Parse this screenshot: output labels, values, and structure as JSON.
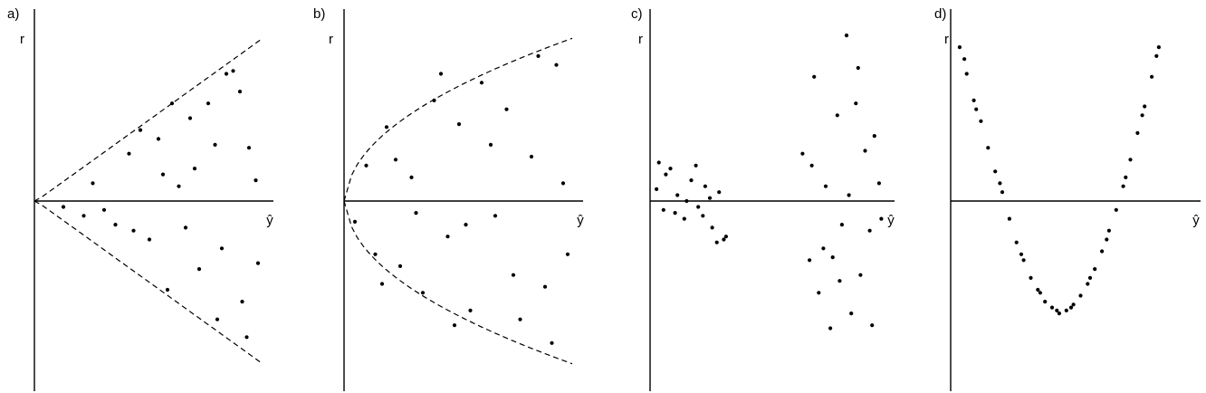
{
  "chart_data": [
    {
      "panel_label": "a)",
      "type": "scatter",
      "xlabel": "ŷ",
      "ylabel": "r",
      "xlim": [
        0,
        10
      ],
      "ylim": [
        -6,
        6
      ],
      "envelope": {
        "shape": "linear-fan",
        "upper": [
          [
            0,
            0
          ],
          [
            10,
            5.5
          ]
        ],
        "lower": [
          [
            0,
            0
          ],
          [
            10,
            -5.5
          ]
        ]
      },
      "points": [
        [
          1.2,
          -0.2
        ],
        [
          2.5,
          0.6
        ],
        [
          3.5,
          -0.8
        ],
        [
          4.1,
          1.6
        ],
        [
          5.0,
          -1.3
        ],
        [
          5.4,
          2.1
        ],
        [
          6.3,
          0.5
        ],
        [
          6.8,
          2.8
        ],
        [
          7.2,
          -2.3
        ],
        [
          7.6,
          3.3
        ],
        [
          8.2,
          -1.6
        ],
        [
          8.7,
          4.4
        ],
        [
          9.1,
          -3.4
        ],
        [
          9.4,
          1.8
        ],
        [
          9.8,
          -2.1
        ],
        [
          3.0,
          -0.3
        ],
        [
          4.6,
          2.4
        ],
        [
          5.8,
          -3.0
        ],
        [
          7.0,
          1.1
        ],
        [
          8.0,
          -4.0
        ],
        [
          9.0,
          3.7
        ],
        [
          2.1,
          -0.5
        ],
        [
          6.0,
          3.3
        ],
        [
          8.4,
          4.3
        ],
        [
          9.3,
          -4.6
        ],
        [
          4.3,
          -1.0
        ],
        [
          5.6,
          0.9
        ],
        [
          7.9,
          1.9
        ],
        [
          6.6,
          -0.9
        ],
        [
          9.7,
          0.7
        ]
      ]
    },
    {
      "panel_label": "b)",
      "type": "scatter",
      "xlabel": "ŷ",
      "ylabel": "r",
      "xlim": [
        0,
        10
      ],
      "ylim": [
        -6,
        6
      ],
      "envelope": {
        "shape": "square-root-fan",
        "upper": [
          [
            0,
            0
          ],
          [
            10,
            5.5
          ]
        ],
        "lower": [
          [
            0,
            0
          ],
          [
            10,
            -5.5
          ]
        ]
      },
      "points": [
        [
          0.4,
          -0.7
        ],
        [
          0.9,
          1.2
        ],
        [
          1.3,
          -1.8
        ],
        [
          1.8,
          2.5
        ],
        [
          2.4,
          -2.2
        ],
        [
          2.9,
          0.8
        ],
        [
          3.4,
          -3.1
        ],
        [
          3.9,
          3.4
        ],
        [
          4.5,
          -1.2
        ],
        [
          5.0,
          2.6
        ],
        [
          5.5,
          -3.7
        ],
        [
          6.0,
          4.0
        ],
        [
          6.6,
          -0.5
        ],
        [
          7.1,
          3.1
        ],
        [
          7.7,
          -4.0
        ],
        [
          8.2,
          1.5
        ],
        [
          8.8,
          -2.9
        ],
        [
          9.3,
          4.6
        ],
        [
          9.8,
          -1.8
        ],
        [
          2.2,
          1.4
        ],
        [
          3.1,
          -0.4
        ],
        [
          4.2,
          4.3
        ],
        [
          5.3,
          -0.8
        ],
        [
          6.4,
          1.9
        ],
        [
          7.4,
          -2.5
        ],
        [
          8.5,
          4.9
        ],
        [
          9.6,
          0.6
        ],
        [
          1.6,
          -2.8
        ],
        [
          4.8,
          -4.2
        ],
        [
          9.1,
          -4.8
        ]
      ]
    },
    {
      "panel_label": "c)",
      "type": "scatter",
      "xlabel": "ŷ",
      "ylabel": "r",
      "xlim": [
        0,
        10
      ],
      "ylim": [
        -6,
        6
      ],
      "groups": [
        {
          "points": [
            [
              0.2,
              0.4
            ],
            [
              0.5,
              -0.3
            ],
            [
              0.8,
              1.1
            ],
            [
              1.1,
              0.2
            ],
            [
              1.4,
              -0.6
            ],
            [
              1.7,
              0.7
            ],
            [
              2.0,
              -0.2
            ],
            [
              2.3,
              0.5
            ],
            [
              2.6,
              -0.9
            ],
            [
              2.9,
              0.3
            ],
            [
              3.1,
              -1.3
            ],
            [
              0.3,
              1.3
            ],
            [
              1.0,
              -0.4
            ],
            [
              1.9,
              1.2
            ],
            [
              2.5,
              0.1
            ],
            [
              3.2,
              -1.2
            ],
            [
              0.6,
              0.9
            ],
            [
              1.5,
              0.0
            ],
            [
              2.2,
              -0.5
            ],
            [
              2.8,
              -1.4
            ]
          ]
        },
        {
          "points": [
            [
              6.5,
              1.6
            ],
            [
              6.8,
              -2.0
            ],
            [
              7.0,
              4.2
            ],
            [
              7.2,
              -3.1
            ],
            [
              7.5,
              0.5
            ],
            [
              7.7,
              -4.3
            ],
            [
              8.0,
              2.9
            ],
            [
              8.2,
              -0.8
            ],
            [
              8.4,
              5.6
            ],
            [
              8.6,
              -3.8
            ],
            [
              8.8,
              3.3
            ],
            [
              9.0,
              -2.5
            ],
            [
              9.2,
              1.7
            ],
            [
              9.4,
              -1.0
            ],
            [
              9.6,
              2.2
            ],
            [
              9.8,
              0.6
            ],
            [
              6.9,
              1.2
            ],
            [
              7.4,
              -1.6
            ],
            [
              8.1,
              -2.7
            ],
            [
              8.9,
              4.5
            ],
            [
              7.8,
              -1.9
            ],
            [
              9.5,
              -4.2
            ],
            [
              8.5,
              0.2
            ],
            [
              9.9,
              -0.6
            ]
          ]
        }
      ]
    },
    {
      "panel_label": "d)",
      "type": "scatter",
      "xlabel": "ŷ",
      "ylabel": "r",
      "xlim": [
        0,
        10
      ],
      "ylim": [
        -6,
        6
      ],
      "points": [
        [
          0.3,
          5.2
        ],
        [
          0.6,
          4.3
        ],
        [
          0.9,
          3.4
        ],
        [
          1.2,
          2.7
        ],
        [
          1.5,
          1.8
        ],
        [
          1.8,
          1.0
        ],
        [
          2.1,
          0.3
        ],
        [
          2.4,
          -0.6
        ],
        [
          2.7,
          -1.4
        ],
        [
          3.0,
          -2.0
        ],
        [
          3.3,
          -2.6
        ],
        [
          3.6,
          -3.0
        ],
        [
          3.9,
          -3.4
        ],
        [
          4.2,
          -3.6
        ],
        [
          4.5,
          -3.8
        ],
        [
          4.8,
          -3.7
        ],
        [
          5.1,
          -3.5
        ],
        [
          5.4,
          -3.2
        ],
        [
          5.7,
          -2.8
        ],
        [
          6.0,
          -2.3
        ],
        [
          6.3,
          -1.7
        ],
        [
          6.6,
          -1.0
        ],
        [
          6.9,
          -0.3
        ],
        [
          7.2,
          0.5
        ],
        [
          7.5,
          1.4
        ],
        [
          7.8,
          2.3
        ],
        [
          8.1,
          3.2
        ],
        [
          8.4,
          4.2
        ],
        [
          8.7,
          5.2
        ],
        [
          0.5,
          4.8
        ],
        [
          1.0,
          3.1
        ],
        [
          2.0,
          0.6
        ],
        [
          2.9,
          -1.8
        ],
        [
          3.7,
          -3.1
        ],
        [
          4.4,
          -3.7
        ],
        [
          5.0,
          -3.6
        ],
        [
          5.8,
          -2.6
        ],
        [
          6.5,
          -1.3
        ],
        [
          7.3,
          0.8
        ],
        [
          8.0,
          2.9
        ],
        [
          8.6,
          4.9
        ]
      ]
    }
  ]
}
